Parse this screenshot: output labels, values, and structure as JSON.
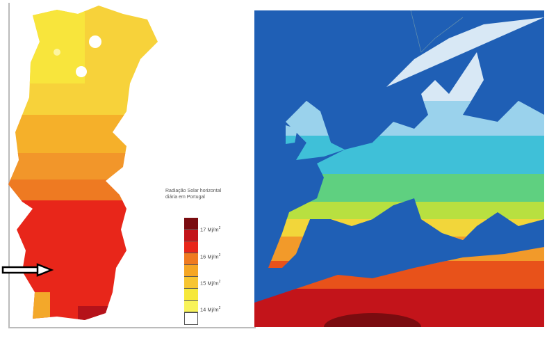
{
  "legend": {
    "title_line1": "Radiação Solar horizontal",
    "title_line2": "diária em Portugal",
    "colors": [
      "#7a0c10",
      "#c3141a",
      "#e8261a",
      "#ef7a1f",
      "#f5a623",
      "#f7c531",
      "#f6e83a",
      "#f8f35a",
      "#ffffff"
    ],
    "labels": [
      {
        "value": "17 Mj/m",
        "sup": "2"
      },
      {
        "value": "16 Mj/m",
        "sup": "2"
      },
      {
        "value": "15 Mj/m",
        "sup": "2"
      },
      {
        "value": "14 Mj/m",
        "sup": "2"
      }
    ]
  },
  "marker": {
    "icon": "arrow-right-icon"
  },
  "colors": {
    "sea": "#1f5fb5",
    "high": "#c3141a",
    "mid": "#f5a623",
    "low": "#f6e83a",
    "cool": "#3fc0d8",
    "cold": "#d8e8f5"
  }
}
